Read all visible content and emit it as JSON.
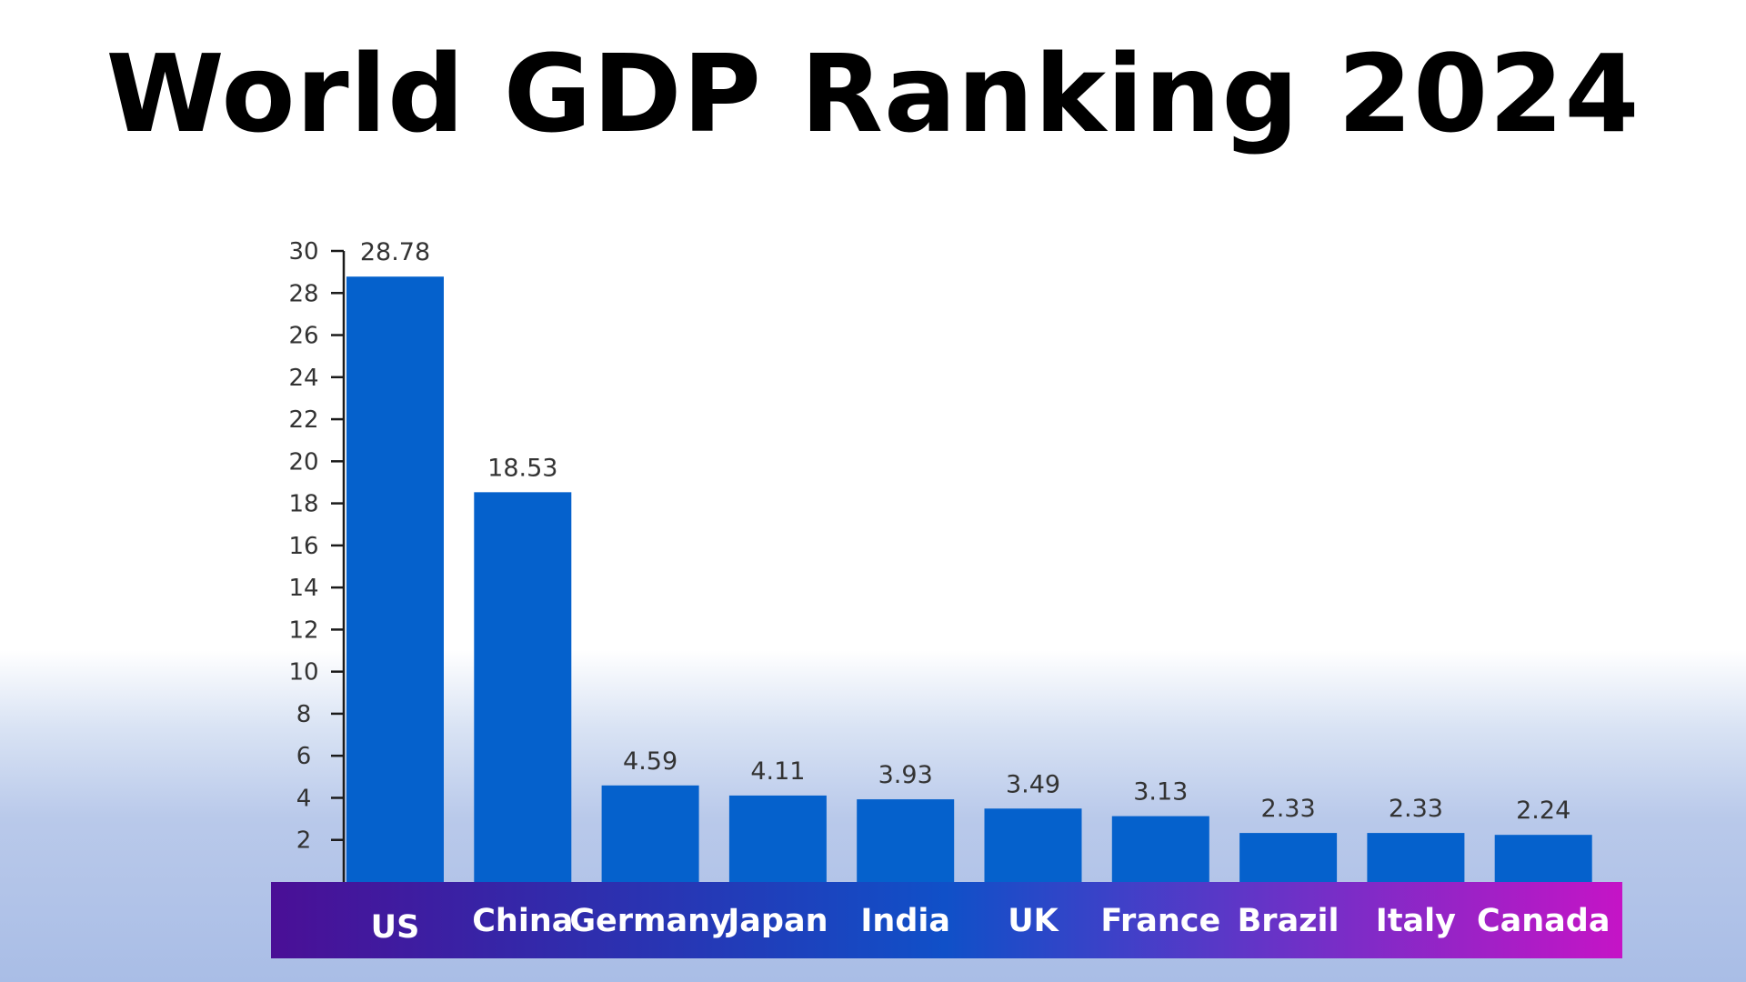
{
  "title": "World GDP Ranking 2024",
  "colors": {
    "bar": "#0561cc",
    "axis": "#1a1a1a",
    "band_left": "#4a0f96",
    "band_mid": "#1050c8",
    "band_right": "#c514c6"
  },
  "chart_data": {
    "type": "bar",
    "title": "World GDP Ranking 2024",
    "xlabel": "",
    "ylabel": "",
    "categories": [
      "US",
      "China",
      "Germany",
      "Japan",
      "India",
      "UK",
      "France",
      "Brazil",
      "Italy",
      "Canada"
    ],
    "values": [
      28.78,
      18.53,
      4.59,
      4.11,
      3.93,
      3.49,
      3.13,
      2.33,
      2.33,
      2.24
    ],
    "value_labels": [
      "28.78",
      "18.53",
      "4.59",
      "4.11",
      "3.93",
      "3.49",
      "3.13",
      "2.33",
      "2.33",
      "2.24"
    ],
    "yticks": [
      2,
      4,
      6,
      8,
      10,
      12,
      14,
      16,
      18,
      20,
      22,
      24,
      26,
      28,
      30
    ],
    "ylim": [
      0,
      30
    ],
    "grid": false,
    "legend": "none"
  }
}
